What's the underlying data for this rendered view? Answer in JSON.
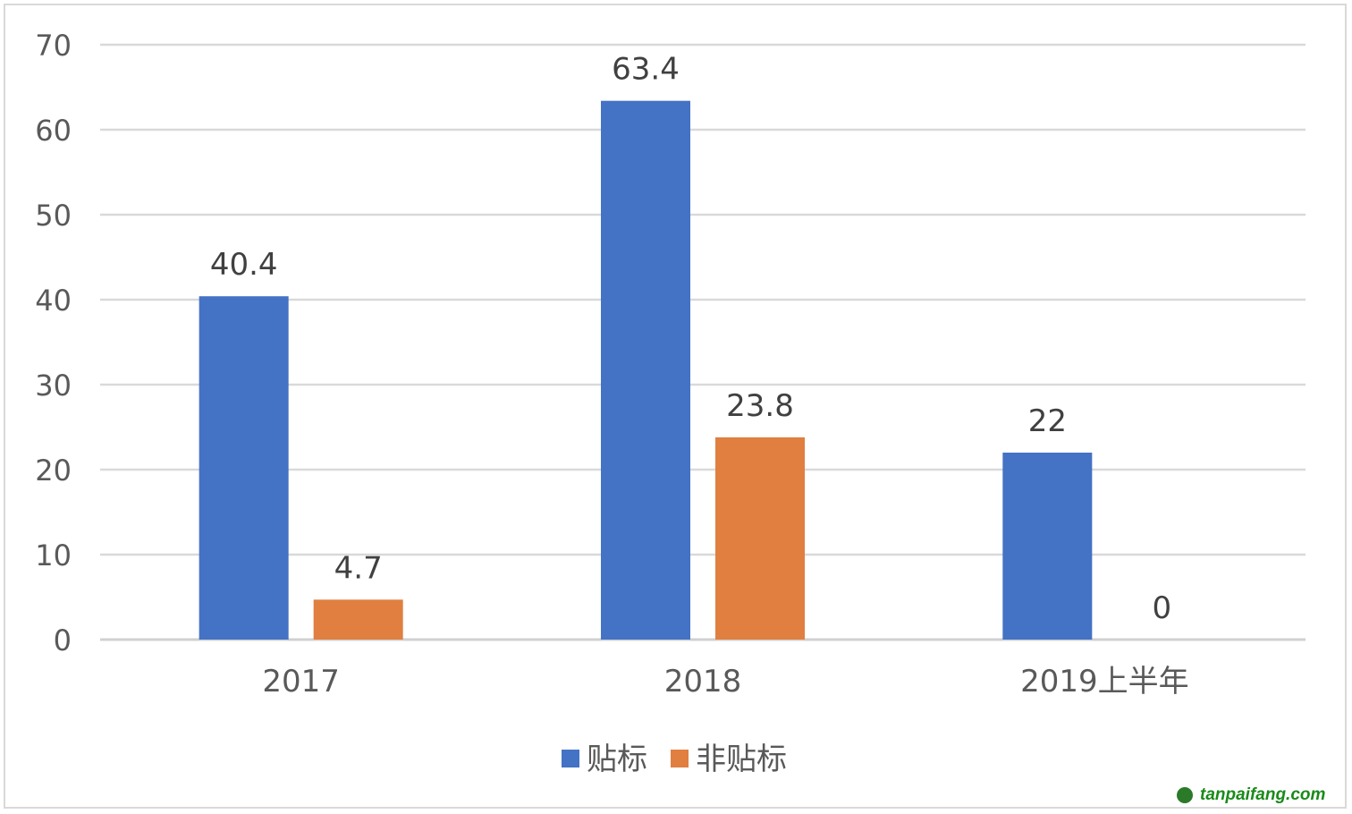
{
  "chart_data": {
    "type": "bar",
    "title": "",
    "xlabel": "",
    "ylabel": "",
    "categories": [
      "2017",
      "2018",
      "2019上半年"
    ],
    "series": [
      {
        "name": "贴标",
        "values": [
          40.4,
          63.4,
          22
        ],
        "color": "#4472c4"
      },
      {
        "name": "非贴标",
        "values": [
          4.7,
          23.8,
          0
        ],
        "color": "#e07f40"
      }
    ],
    "ylim": [
      0,
      70
    ],
    "yticks": [
      0,
      10,
      20,
      30,
      40,
      50,
      60,
      70
    ],
    "grid": true,
    "legend": "bottom-center",
    "data_labels": true
  },
  "watermark": "tanpaifang.com"
}
